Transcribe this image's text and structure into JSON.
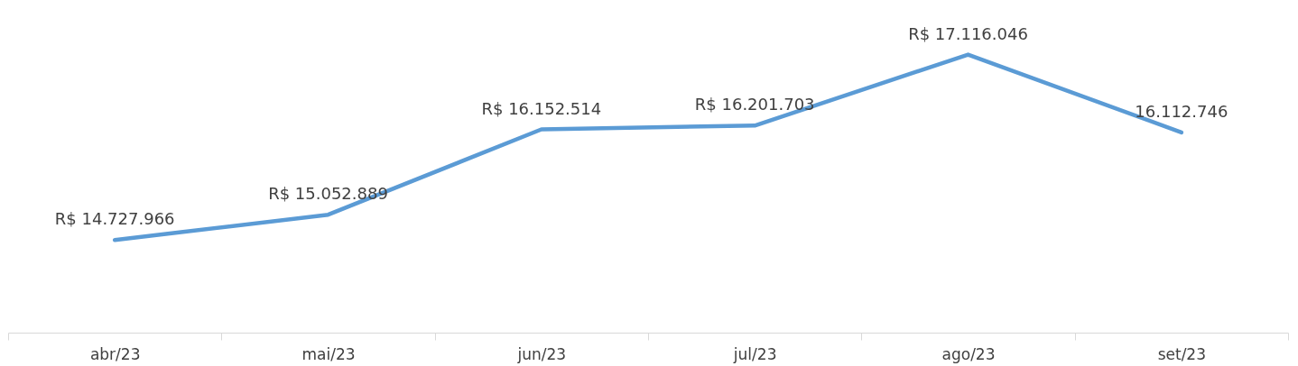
{
  "chart_data": {
    "type": "line",
    "categories": [
      "abr/23",
      "mai/23",
      "jun/23",
      "jul/23",
      "ago/23",
      "set/23"
    ],
    "values": [
      14727966,
      15052889,
      16152514,
      16201703,
      17116046,
      16112746
    ],
    "value_labels": [
      "R$ 14.727.966",
      "R$ 15.052.889",
      "R$ 16.152.514",
      "R$ 16.201.703",
      "R$ 17.116.046",
      "16.112.746"
    ],
    "color": "#5b9bd5"
  }
}
